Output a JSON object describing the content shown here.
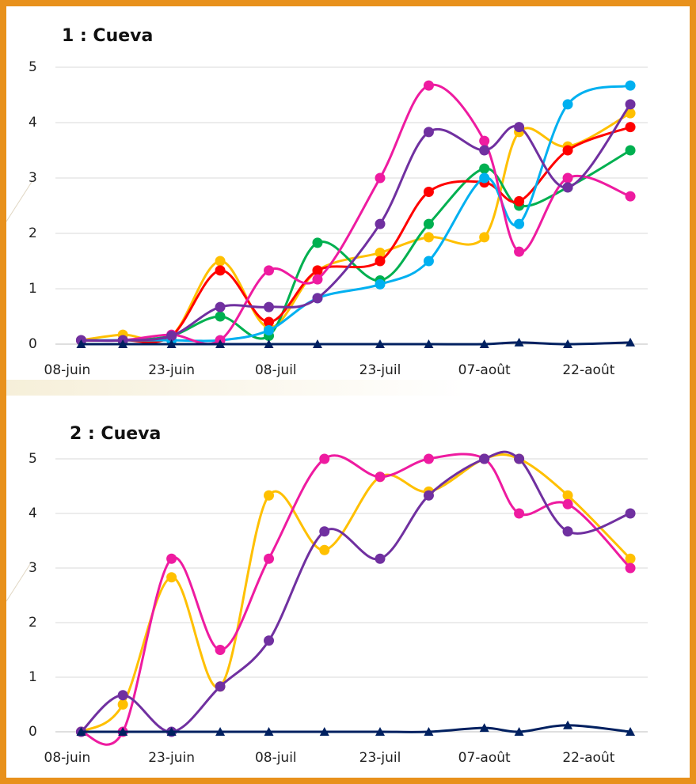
{
  "chart_data": [
    {
      "type": "line",
      "title": "1 : Cueva",
      "x": [
        2,
        8,
        15,
        22,
        29,
        36,
        45,
        52,
        60,
        65,
        72,
        81
      ],
      "xlim": [
        -1.7,
        83.5
      ],
      "xticks": [
        {
          "value": 0,
          "label": "08-juin"
        },
        {
          "value": 15,
          "label": "23-juin"
        },
        {
          "value": 30,
          "label": "08-juil"
        },
        {
          "value": 45,
          "label": "23-juil"
        },
        {
          "value": 60,
          "label": "07-août"
        },
        {
          "value": 75,
          "label": "22-août"
        }
      ],
      "ylim": [
        0,
        5
      ],
      "yticks": [
        0,
        1,
        2,
        3,
        4,
        5
      ],
      "grid": true,
      "smooth": true,
      "series": [
        {
          "color": "#ffc000",
          "marker": "circle",
          "values": [
            0.07,
            0.17,
            0.15,
            1.5,
            0.3,
            1.33,
            1.65,
            1.93,
            1.93,
            3.83,
            3.57,
            4.17
          ]
        },
        {
          "color": "#00b050",
          "marker": "circle",
          "values": [
            0.07,
            0.07,
            0.15,
            0.5,
            0.15,
            1.83,
            1.15,
            2.17,
            3.17,
            2.5,
            2.83,
            3.5
          ]
        },
        {
          "color": "#ff0000",
          "marker": "circle",
          "values": [
            0.07,
            0.07,
            0.15,
            1.33,
            0.4,
            1.33,
            1.5,
            2.75,
            2.92,
            2.58,
            3.5,
            3.92
          ]
        },
        {
          "color": "#00b0f0",
          "marker": "circle",
          "values": [
            0.07,
            0.07,
            0.07,
            0.07,
            0.25,
            0.83,
            1.08,
            1.5,
            3.0,
            2.17,
            4.33,
            4.67
          ]
        },
        {
          "color": "#ee1ba0",
          "marker": "circle",
          "values": [
            0.07,
            0.07,
            0.17,
            0.07,
            1.33,
            1.17,
            3.0,
            4.67,
            3.67,
            1.67,
            3.0,
            2.67
          ]
        },
        {
          "color": "#7030a0",
          "marker": "circle",
          "values": [
            0.07,
            0.07,
            0.15,
            0.67,
            0.67,
            0.83,
            2.17,
            3.83,
            3.5,
            3.92,
            2.83,
            4.33
          ]
        },
        {
          "color": "#002060",
          "marker": "triangle",
          "values": [
            0,
            0,
            0,
            0,
            0,
            0,
            0,
            0,
            0,
            0.03,
            0,
            0.03
          ]
        }
      ]
    },
    {
      "type": "line",
      "title": "2 : Cueva",
      "x": [
        2,
        8,
        15,
        22,
        29,
        37,
        45,
        52,
        60,
        65,
        72,
        81
      ],
      "xlim": [
        -1.7,
        83.5
      ],
      "xticks": [
        {
          "value": 0,
          "label": "08-juin"
        },
        {
          "value": 15,
          "label": "23-juin"
        },
        {
          "value": 30,
          "label": "08-juil"
        },
        {
          "value": 45,
          "label": "23-juil"
        },
        {
          "value": 60,
          "label": "07-août"
        },
        {
          "value": 75,
          "label": "22-août"
        }
      ],
      "ylim": [
        0,
        5
      ],
      "yticks": [
        0,
        1,
        2,
        3,
        4,
        5
      ],
      "grid": true,
      "smooth": true,
      "series": [
        {
          "color": "#ffc000",
          "marker": "circle",
          "values": [
            0,
            0.5,
            2.83,
            0.83,
            4.33,
            3.33,
            4.67,
            4.4,
            5.0,
            5.0,
            4.33,
            3.17
          ]
        },
        {
          "color": "#ee1ba0",
          "marker": "circle",
          "values": [
            0,
            0,
            3.17,
            1.5,
            3.17,
            5.0,
            4.67,
            5.0,
            5.0,
            4.0,
            4.17,
            3.0
          ]
        },
        {
          "color": "#7030a0",
          "marker": "circle",
          "values": [
            0,
            0.67,
            0,
            0.83,
            1.67,
            3.67,
            3.17,
            4.33,
            5.0,
            5.0,
            3.67,
            4.0
          ]
        },
        {
          "color": "#002060",
          "marker": "triangle",
          "values": [
            0,
            0,
            0,
            0,
            0,
            0,
            0,
            0,
            0.07,
            0,
            0.12,
            0
          ]
        }
      ]
    }
  ]
}
